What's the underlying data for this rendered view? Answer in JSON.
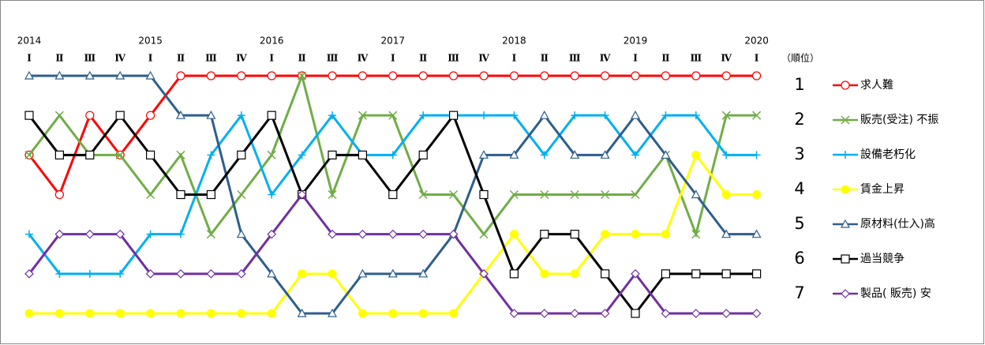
{
  "chart_data": {
    "type": "line",
    "categories": [
      "Ⅰ",
      "Ⅱ",
      "Ⅲ",
      "Ⅳ",
      "Ⅰ",
      "Ⅱ",
      "Ⅲ",
      "Ⅳ",
      "Ⅰ",
      "Ⅱ",
      "Ⅲ",
      "Ⅳ",
      "Ⅰ",
      "Ⅱ",
      "Ⅲ",
      "Ⅳ",
      "Ⅰ",
      "Ⅱ",
      "Ⅲ",
      "Ⅳ",
      "Ⅰ",
      "Ⅱ",
      "Ⅲ",
      "Ⅳ",
      "Ⅰ"
    ],
    "year_labels": [
      "2014",
      null,
      null,
      null,
      "2015",
      null,
      null,
      null,
      "2016",
      null,
      null,
      null,
      "2017",
      null,
      null,
      null,
      "2018",
      null,
      null,
      null,
      "2019",
      null,
      null,
      null,
      "2020"
    ],
    "y_label": "（順位）",
    "ylim": [
      1,
      7
    ],
    "y_inverted": true,
    "yticks": [
      1,
      2,
      3,
      4,
      5,
      6,
      7
    ],
    "series": [
      {
        "name": "求人難",
        "color": "#ff0000",
        "marker": "circle-open",
        "values": [
          3,
          4,
          2,
          3,
          2,
          1,
          1,
          1,
          1,
          1,
          1,
          1,
          1,
          1,
          1,
          1,
          1,
          1,
          1,
          1,
          1,
          1,
          1,
          1,
          1
        ]
      },
      {
        "name": "販売(受注) 不振",
        "color": "#70ad47",
        "marker": "x",
        "values": [
          3,
          2,
          3,
          3,
          4,
          3,
          5,
          4,
          3,
          1,
          4,
          2,
          2,
          4,
          4,
          5,
          4,
          4,
          4,
          4,
          4,
          3,
          5,
          2,
          2
        ]
      },
      {
        "name": "設備老朽化",
        "color": "#00b0f0",
        "marker": "plus",
        "values": [
          5,
          6,
          6,
          6,
          5,
          5,
          3,
          2,
          4,
          3,
          2,
          3,
          3,
          2,
          2,
          2,
          2,
          3,
          2,
          2,
          3,
          2,
          2,
          3,
          3
        ]
      },
      {
        "name": "賃金上昇",
        "color": "#ffff00",
        "marker": "circle-filled",
        "values": [
          7,
          7,
          7,
          7,
          7,
          7,
          7,
          7,
          7,
          6,
          6,
          7,
          7,
          7,
          7,
          6,
          5,
          6,
          6,
          5,
          5,
          5,
          3,
          4,
          4
        ]
      },
      {
        "name": "原材料(仕入)高",
        "color": "#2e5e8c",
        "marker": "triangle-open",
        "values": [
          1,
          1,
          1,
          1,
          1,
          2,
          2,
          5,
          6,
          7,
          7,
          6,
          6,
          6,
          5,
          3,
          3,
          2,
          3,
          3,
          2,
          3,
          4,
          5,
          5
        ]
      },
      {
        "name": "過当競争",
        "color": "#000000",
        "marker": "square-open",
        "values": [
          2,
          3,
          3,
          2,
          3,
          4,
          4,
          3,
          2,
          4,
          3,
          3,
          4,
          3,
          2,
          4,
          6,
          5,
          5,
          6,
          7,
          6,
          6,
          6,
          6
        ]
      },
      {
        "name": "製品( 販売) 安",
        "color": "#7030a0",
        "marker": "diamond-open",
        "values": [
          6,
          5,
          5,
          5,
          6,
          6,
          6,
          6,
          5,
          4,
          5,
          5,
          5,
          5,
          5,
          6,
          7,
          7,
          7,
          7,
          6,
          7,
          7,
          7,
          7
        ]
      }
    ]
  }
}
